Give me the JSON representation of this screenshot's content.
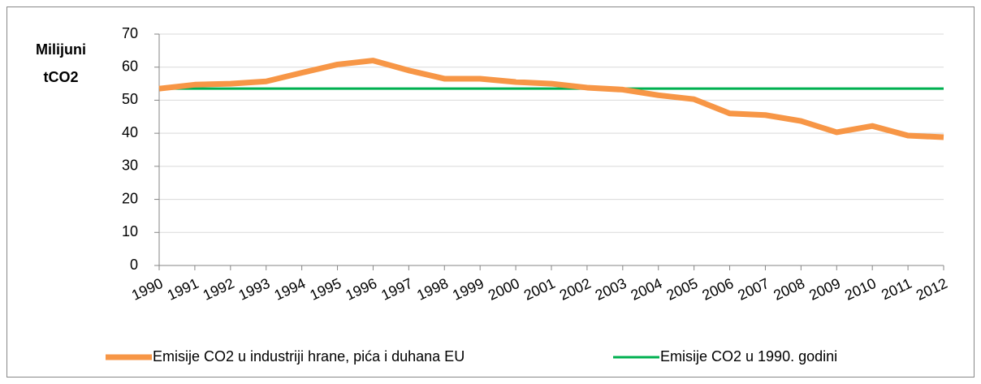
{
  "chart_data": {
    "type": "line",
    "ylabel": [
      "Milijuni",
      "tCO2"
    ],
    "categories": [
      "1990",
      "1991",
      "1992",
      "1993",
      "1994",
      "1995",
      "1996",
      "1997",
      "1998",
      "1999",
      "2000",
      "2001",
      "2002",
      "2003",
      "2004",
      "2005",
      "2006",
      "2007",
      "2008",
      "2009",
      "2010",
      "2011",
      "2012"
    ],
    "series": [
      {
        "name": "Emisije CO2 u industriji hrane, pića i duhana EU",
        "color": "#f79646",
        "values": [
          53.5,
          54.7,
          55,
          55.7,
          58.3,
          60.8,
          62,
          59,
          56.5,
          56.5,
          55.5,
          55,
          53.8,
          53.2,
          51.5,
          50.3,
          46,
          45.5,
          43.7,
          40.3,
          42.2,
          39.3,
          38.8
        ]
      },
      {
        "name": "Emisije CO2 u 1990. godini",
        "color": "#00b050",
        "values": [
          53.5,
          53.5,
          53.5,
          53.5,
          53.5,
          53.5,
          53.5,
          53.5,
          53.5,
          53.5,
          53.5,
          53.5,
          53.5,
          53.5,
          53.5,
          53.5,
          53.5,
          53.5,
          53.5,
          53.5,
          53.5,
          53.5,
          53.5
        ]
      }
    ],
    "ylim": [
      0,
      70
    ],
    "yticks": [
      0,
      10,
      20,
      30,
      40,
      50,
      60,
      70
    ],
    "grid": true
  }
}
